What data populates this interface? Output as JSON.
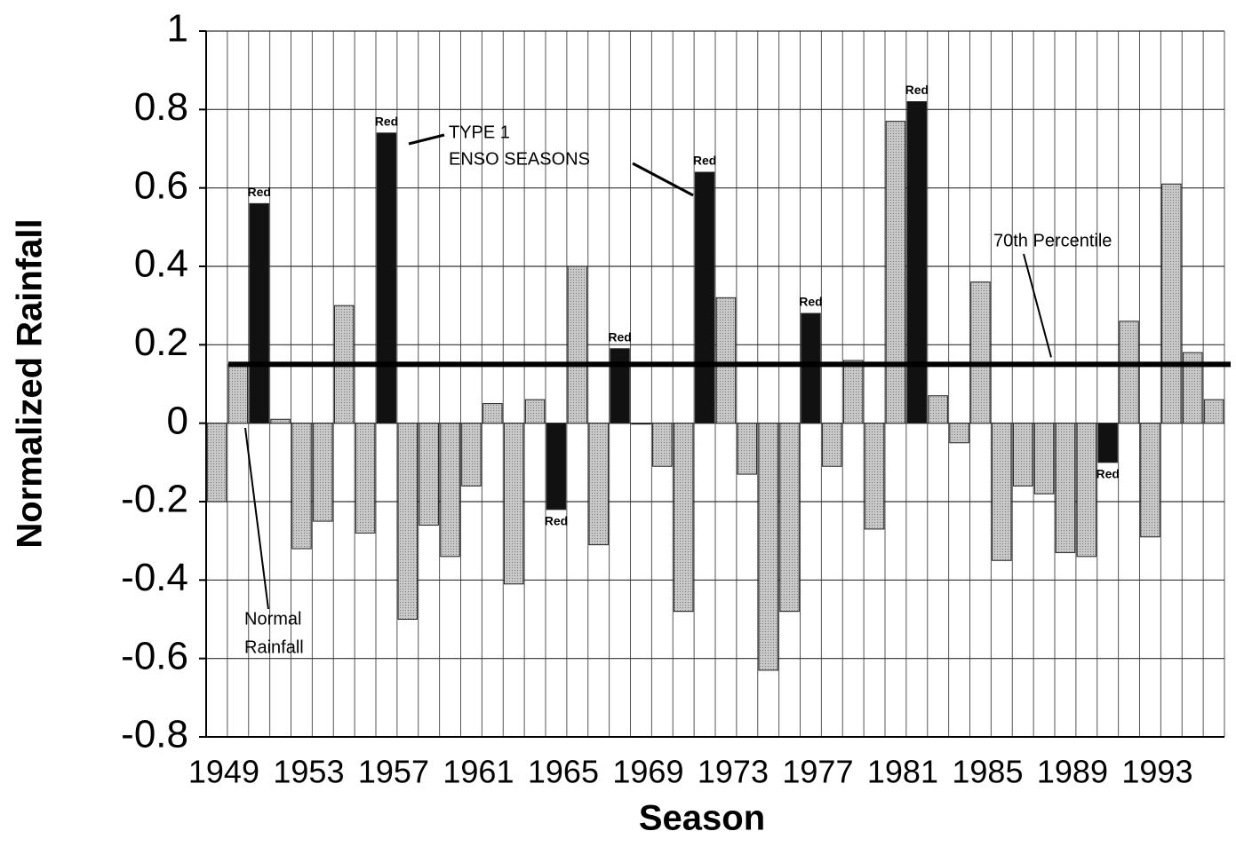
{
  "chart_data": {
    "type": "bar",
    "x_label": "Season",
    "y_label": "Normalized Rainfall",
    "categories": [
      "1949",
      null,
      null,
      null,
      "1953",
      null,
      null,
      null,
      "1957",
      null,
      null,
      null,
      "1961",
      null,
      null,
      null,
      "1965",
      null,
      null,
      null,
      "1969",
      null,
      null,
      null,
      "1973",
      null,
      null,
      null,
      "1977",
      null,
      null,
      null,
      "1981",
      null,
      null,
      null,
      "1985",
      null,
      null,
      null,
      "1989",
      null,
      null,
      null,
      "1993",
      null,
      null,
      null
    ],
    "values": [
      -0.2,
      0.15,
      0.56,
      0.01,
      -0.32,
      -0.25,
      0.3,
      -0.28,
      0.74,
      -0.5,
      -0.26,
      -0.34,
      -0.16,
      0.05,
      -0.41,
      0.06,
      -0.22,
      0.4,
      -0.31,
      0.19,
      0,
      -0.11,
      -0.48,
      0.64,
      0.32,
      -0.13,
      -0.63,
      -0.48,
      0.28,
      -0.11,
      0.16,
      -0.27,
      0.77,
      0.82,
      0.07,
      -0.05,
      0.36,
      -0.35,
      -0.16,
      -0.18,
      -0.33,
      -0.34,
      -0.1,
      0.26,
      -0.29,
      0.61,
      0.18,
      0.06
    ],
    "colors": [
      "#b3b3b3",
      "#b3b3b3",
      "#111111",
      "#b3b3b3",
      "#b3b3b3",
      "#b3b3b3",
      "#b3b3b3",
      "#b3b3b3",
      "#111111",
      "#b3b3b3",
      "#b3b3b3",
      "#b3b3b3",
      "#b3b3b3",
      "#b3b3b3",
      "#b3b3b3",
      "#b3b3b3",
      "#111111",
      "#b3b3b3",
      "#b3b3b3",
      "#111111",
      "#b3b3b3",
      "#b3b3b3",
      "#b3b3b3",
      "#111111",
      "#b3b3b3",
      "#b3b3b3",
      "#b3b3b3",
      "#b3b3b3",
      "#111111",
      "#b3b3b3",
      "#b3b3b3",
      "#b3b3b3",
      "#b3b3b3",
      "#111111",
      "#b3b3b3",
      "#b3b3b3",
      "#b3b3b3",
      "#b3b3b3",
      "#b3b3b3",
      "#b3b3b3",
      "#b3b3b3",
      "#b3b3b3",
      "#111111",
      "#b3b3b3",
      "#b3b3b3",
      "#b3b3b3",
      "#b3b3b3",
      "#b3b3b3"
    ],
    "bar_labels": [
      null,
      null,
      "Red",
      null,
      null,
      null,
      null,
      null,
      "Red",
      null,
      null,
      null,
      null,
      null,
      null,
      null,
      "Red",
      null,
      null,
      "Red",
      null,
      null,
      null,
      "Red",
      null,
      null,
      null,
      null,
      "Red",
      null,
      null,
      null,
      null,
      "Red",
      null,
      null,
      null,
      null,
      null,
      null,
      null,
      null,
      "Red",
      null,
      null,
      null,
      null,
      null
    ],
    "ylim": [
      -0.8,
      1
    ],
    "yticks": [
      -0.8,
      -0.6,
      -0.4,
      -0.2,
      0,
      0.2,
      0.4,
      0.6,
      0.8,
      1
    ],
    "grid": true,
    "reference_line": {
      "label": "70th Percentile",
      "value": 0.15
    },
    "annotations": [
      {
        "lines": [
          "TYPE 1",
          "ENSO SEASONS"
        ]
      },
      {
        "lines": [
          "Normal",
          "Rainfall"
        ]
      }
    ]
  }
}
